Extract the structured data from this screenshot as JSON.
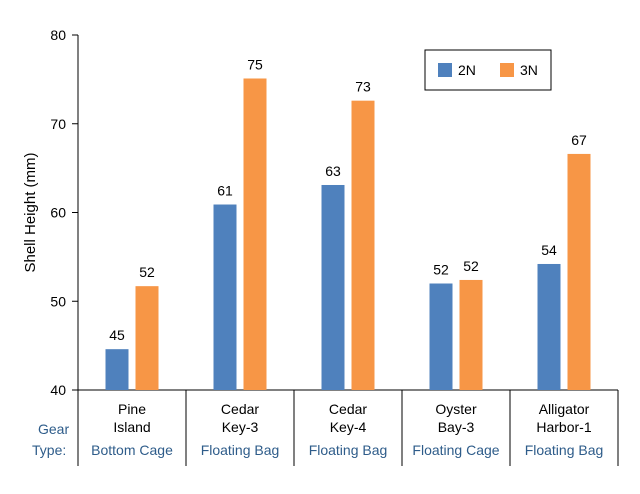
{
  "chart_data": {
    "type": "bar",
    "title": "",
    "xlabel": "",
    "ylabel": "Shell Height (mm)",
    "ylim": [
      40,
      80
    ],
    "yticks": [
      40,
      50,
      60,
      70,
      80
    ],
    "grid": false,
    "legend_position": "top-right",
    "gear_type_label": [
      "Gear",
      "Type:"
    ],
    "categories": [
      {
        "lines": [
          "Pine",
          "Island"
        ],
        "gear": "Bottom Cage"
      },
      {
        "lines": [
          "Cedar",
          "Key-3"
        ],
        "gear": "Floating Bag"
      },
      {
        "lines": [
          "Cedar",
          "Key-4"
        ],
        "gear": "Floating Bag"
      },
      {
        "lines": [
          "Oyster",
          "Bay-3"
        ],
        "gear": "Floating Cage"
      },
      {
        "lines": [
          "Alligator",
          "Harbor-1"
        ],
        "gear": "Floating Bag"
      }
    ],
    "series": [
      {
        "name": "2N",
        "color": "#4f81bd",
        "values": [
          44.6,
          60.9,
          63.1,
          52.0,
          54.2
        ],
        "labels": [
          "45",
          "61",
          "63",
          "52",
          "54"
        ]
      },
      {
        "name": "3N",
        "color": "#f79646",
        "values": [
          51.7,
          75.1,
          72.6,
          52.4,
          66.6
        ],
        "labels": [
          "52",
          "75",
          "73",
          "52",
          "67"
        ]
      }
    ]
  }
}
